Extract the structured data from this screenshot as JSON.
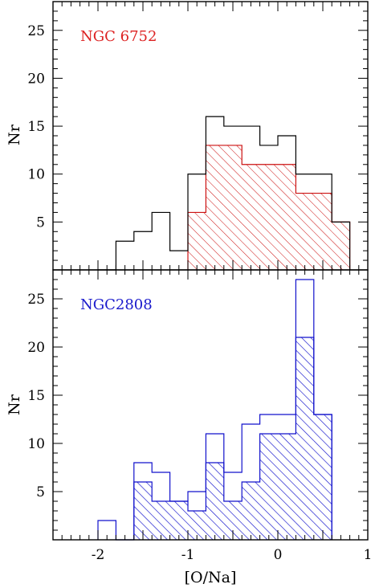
{
  "chart_data": [
    {
      "type": "histogram",
      "panel": "top",
      "label": "NGC 6752",
      "label_color": "#dd2222",
      "fill_color": "#cc1111",
      "hatch": "diagonal",
      "ylabel": "Nr",
      "xlim": [
        -2.5,
        1.0
      ],
      "ylim": [
        0,
        28
      ],
      "yticks": [
        "5",
        "10",
        "15",
        "20",
        "25"
      ],
      "bin_width": 0.2,
      "series": [
        {
          "style": "outline",
          "color": "#000000",
          "bins": [
            {
              "x0": -2.0,
              "x1": -1.8,
              "count": 0
            },
            {
              "x0": -1.8,
              "x1": -1.6,
              "count": 3
            },
            {
              "x0": -1.6,
              "x1": -1.4,
              "count": 4
            },
            {
              "x0": -1.4,
              "x1": -1.2,
              "count": 6
            },
            {
              "x0": -1.2,
              "x1": -1.0,
              "count": 2
            },
            {
              "x0": -1.0,
              "x1": -0.8,
              "count": 10
            },
            {
              "x0": -0.8,
              "x1": -0.6,
              "count": 16
            },
            {
              "x0": -0.6,
              "x1": -0.4,
              "count": 15
            },
            {
              "x0": -0.4,
              "x1": -0.2,
              "count": 15
            },
            {
              "x0": -0.2,
              "x1": 0.0,
              "count": 13
            },
            {
              "x0": 0.0,
              "x1": 0.2,
              "count": 14
            },
            {
              "x0": 0.2,
              "x1": 0.4,
              "count": 10
            },
            {
              "x0": 0.4,
              "x1": 0.6,
              "count": 10
            },
            {
              "x0": 0.6,
              "x1": 0.8,
              "count": 5
            }
          ]
        },
        {
          "style": "hatched",
          "color": "#cc1111",
          "bins": [
            {
              "x0": -1.0,
              "x1": -0.8,
              "count": 6
            },
            {
              "x0": -0.8,
              "x1": -0.6,
              "count": 13
            },
            {
              "x0": -0.6,
              "x1": -0.4,
              "count": 13
            },
            {
              "x0": -0.4,
              "x1": -0.2,
              "count": 11
            },
            {
              "x0": -0.2,
              "x1": 0.0,
              "count": 11
            },
            {
              "x0": 0.0,
              "x1": 0.2,
              "count": 11
            },
            {
              "x0": 0.2,
              "x1": 0.4,
              "count": 8
            },
            {
              "x0": 0.4,
              "x1": 0.6,
              "count": 8
            },
            {
              "x0": 0.6,
              "x1": 0.8,
              "count": 5
            }
          ]
        }
      ]
    },
    {
      "type": "histogram",
      "panel": "bottom",
      "label": "NGC2808",
      "label_color": "#1a1acc",
      "fill_color": "#1111cc",
      "hatch": "diagonal",
      "ylabel": "Nr",
      "xlabel": "[O/Na]",
      "xlim": [
        -2.5,
        1.0
      ],
      "ylim": [
        0,
        28
      ],
      "xticks": [
        "-2",
        "-1",
        "0",
        "1"
      ],
      "xtick_values": [
        -2,
        -1,
        0,
        1
      ],
      "yticks": [
        "5",
        "10",
        "15",
        "20",
        "25"
      ],
      "bin_width": 0.2,
      "series": [
        {
          "style": "outline",
          "color": "#1111cc",
          "bins": [
            {
              "x0": -2.0,
              "x1": -1.8,
              "count": 2
            },
            {
              "x0": -1.8,
              "x1": -1.6,
              "count": 0
            },
            {
              "x0": -1.6,
              "x1": -1.4,
              "count": 8
            },
            {
              "x0": -1.4,
              "x1": -1.2,
              "count": 7
            },
            {
              "x0": -1.2,
              "x1": -1.0,
              "count": 4
            },
            {
              "x0": -1.0,
              "x1": -0.8,
              "count": 5
            },
            {
              "x0": -0.8,
              "x1": -0.6,
              "count": 11
            },
            {
              "x0": -0.6,
              "x1": -0.4,
              "count": 7
            },
            {
              "x0": -0.4,
              "x1": -0.2,
              "count": 12
            },
            {
              "x0": -0.2,
              "x1": 0.0,
              "count": 13
            },
            {
              "x0": 0.0,
              "x1": 0.2,
              "count": 13
            },
            {
              "x0": 0.2,
              "x1": 0.4,
              "count": 27
            },
            {
              "x0": 0.4,
              "x1": 0.6,
              "count": 13
            }
          ]
        },
        {
          "style": "hatched",
          "color": "#1111cc",
          "bins": [
            {
              "x0": -1.6,
              "x1": -1.4,
              "count": 6
            },
            {
              "x0": -1.4,
              "x1": -1.2,
              "count": 4
            },
            {
              "x0": -1.2,
              "x1": -1.0,
              "count": 4
            },
            {
              "x0": -1.0,
              "x1": -0.8,
              "count": 3
            },
            {
              "x0": -0.8,
              "x1": -0.6,
              "count": 8
            },
            {
              "x0": -0.6,
              "x1": -0.4,
              "count": 4
            },
            {
              "x0": -0.4,
              "x1": -0.2,
              "count": 6
            },
            {
              "x0": -0.2,
              "x1": 0.0,
              "count": 11
            },
            {
              "x0": 0.0,
              "x1": 0.2,
              "count": 11
            },
            {
              "x0": 0.2,
              "x1": 0.4,
              "count": 21
            },
            {
              "x0": 0.4,
              "x1": 0.6,
              "count": 13
            }
          ]
        }
      ]
    }
  ]
}
